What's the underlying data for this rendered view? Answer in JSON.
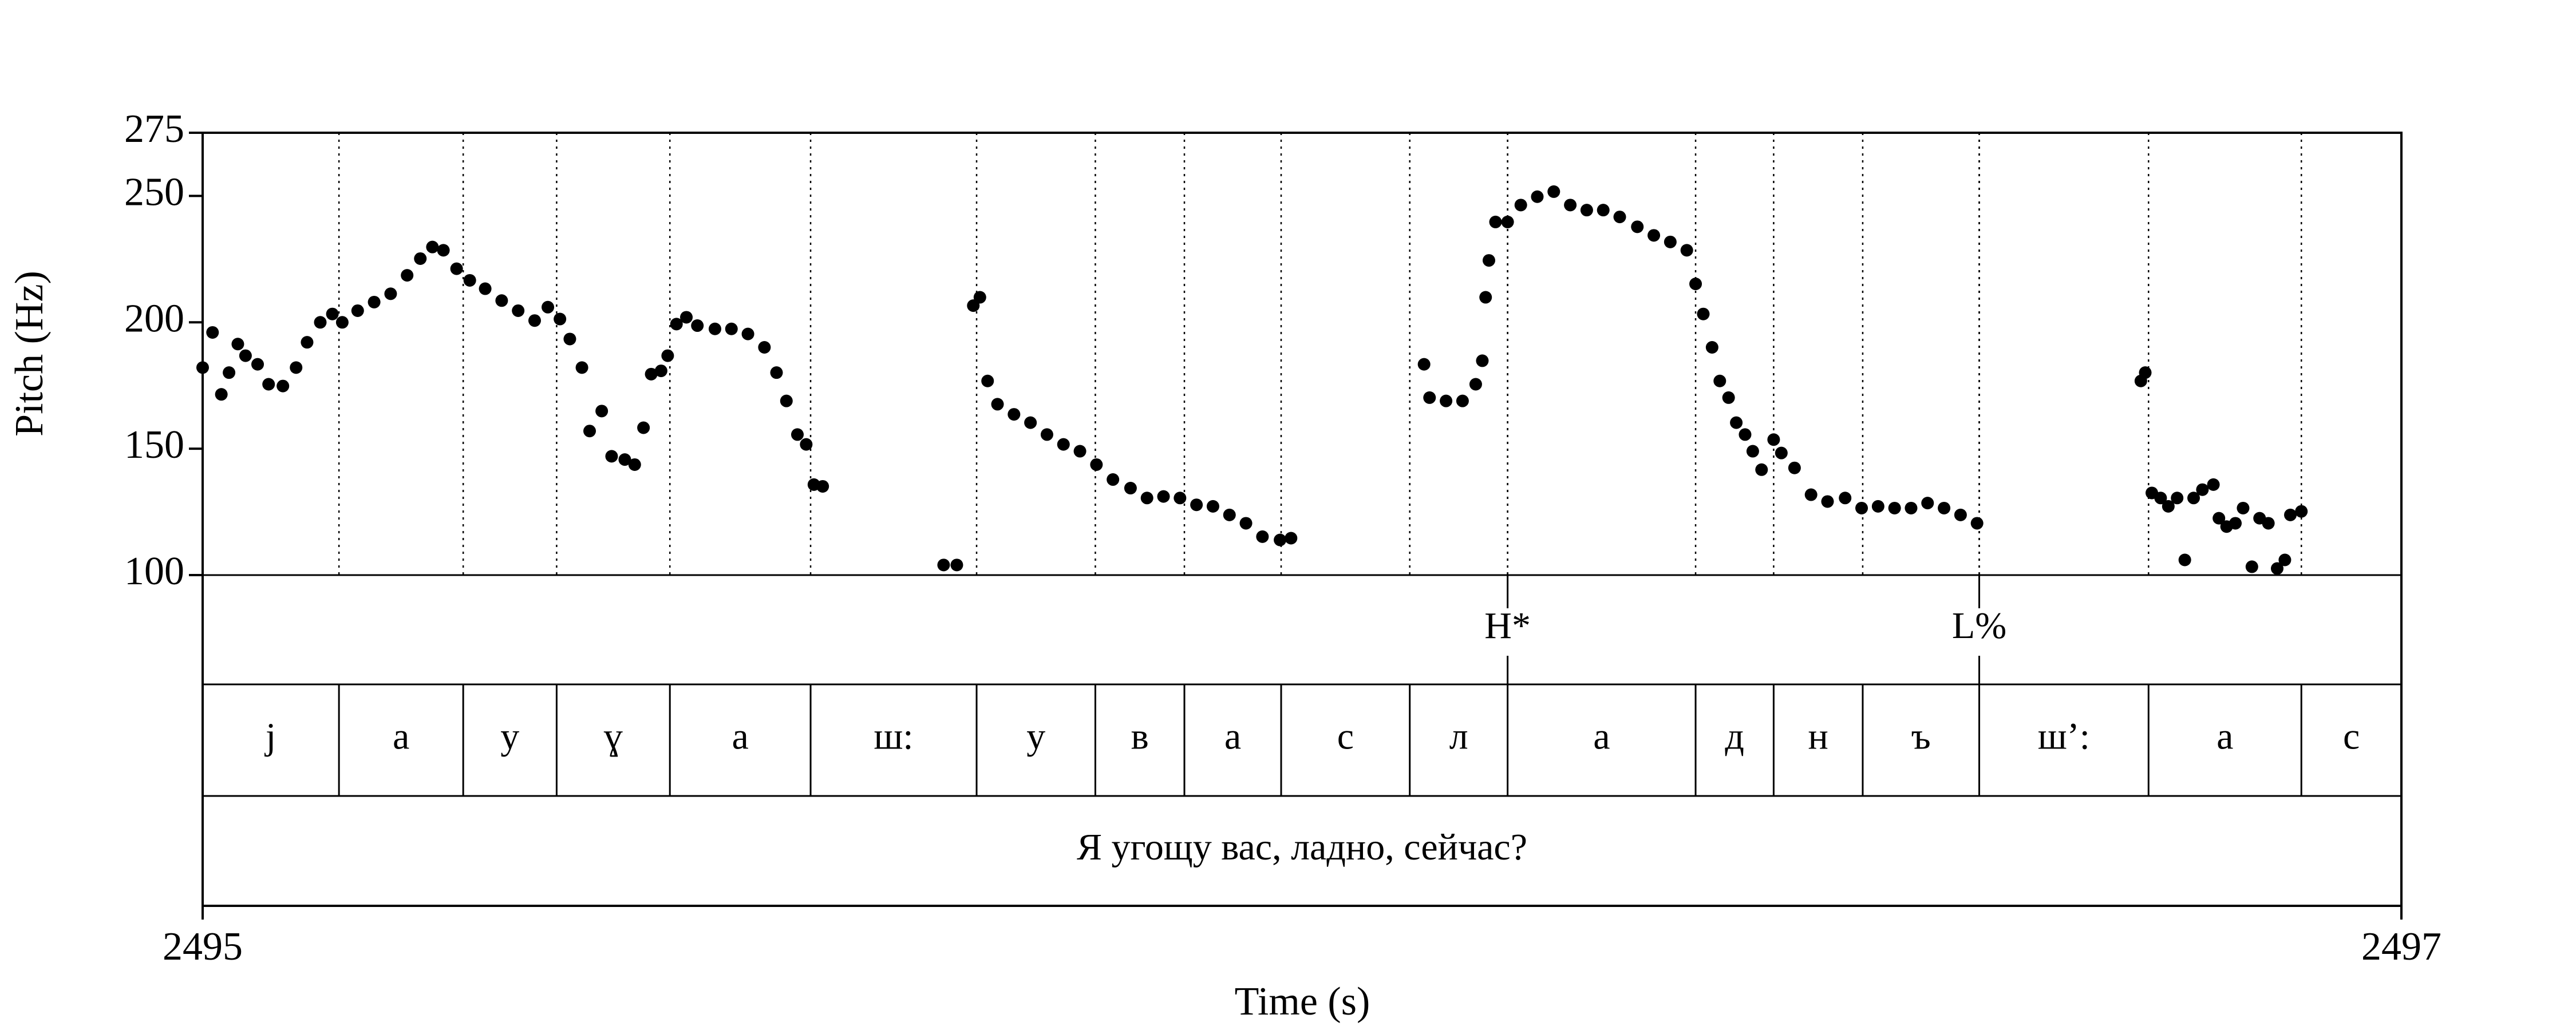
{
  "chart_data": {
    "type": "scatter",
    "xlabel": "Time (s)",
    "ylabel": "Pitch (Hz)",
    "xlim": [
      2495,
      2497
    ],
    "xticks": [
      2495,
      2497
    ],
    "ylim": [
      100,
      275
    ],
    "yticks": [
      100,
      150,
      200,
      250,
      275
    ],
    "color": "#000000",
    "x": [
      2495.0,
      2495.009,
      2495.017,
      2495.024,
      2495.032,
      2495.039,
      2495.05,
      2495.06,
      2495.073,
      2495.085,
      2495.095,
      2495.107,
      2495.118,
      2495.127,
      2495.141,
      2495.156,
      2495.171,
      2495.186,
      2495.198,
      2495.209,
      2495.219,
      2495.231,
      2495.243,
      2495.257,
      2495.272,
      2495.287,
      2495.302,
      2495.314,
      2495.325,
      2495.334,
      2495.345,
      2495.352,
      2495.363,
      2495.372,
      2495.384,
      2495.393,
      2495.401,
      2495.408,
      2495.417,
      2495.423,
      2495.431,
      2495.44,
      2495.45,
      2495.466,
      2495.481,
      2495.496,
      2495.511,
      2495.522,
      2495.531,
      2495.541,
      2495.549,
      2495.556,
      2495.564,
      2495.674,
      2495.686,
      2495.701,
      2495.707,
      2495.714,
      2495.723,
      2495.738,
      2495.753,
      2495.768,
      2495.783,
      2495.798,
      2495.813,
      2495.828,
      2495.844,
      2495.859,
      2495.874,
      2495.889,
      2495.904,
      2495.919,
      2495.934,
      2495.949,
      2495.964,
      2495.98,
      2495.99,
      2496.111,
      2496.116,
      2496.131,
      2496.146,
      2496.158,
      2496.164,
      2496.167,
      2496.17,
      2496.176,
      2496.187,
      2496.199,
      2496.214,
      2496.229,
      2496.244,
      2496.259,
      2496.274,
      2496.289,
      2496.305,
      2496.32,
      2496.335,
      2496.35,
      2496.358,
      2496.365,
      2496.373,
      2496.38,
      2496.388,
      2496.395,
      2496.403,
      2496.41,
      2496.418,
      2496.429,
      2496.436,
      2496.448,
      2496.463,
      2496.478,
      2496.494,
      2496.509,
      2496.524,
      2496.539,
      2496.554,
      2496.569,
      2496.584,
      2496.599,
      2496.614,
      2496.763,
      2496.767,
      2496.773,
      2496.781,
      2496.788,
      2496.796,
      2496.803,
      2496.811,
      2496.819,
      2496.829,
      2496.834,
      2496.841,
      2496.849,
      2496.856,
      2496.864,
      2496.871,
      2496.879,
      2496.887,
      2496.894,
      2496.899,
      2496.909
    ],
    "values": [
      182.1,
      196.0,
      171.5,
      180.1,
      191.4,
      186.8,
      183.4,
      175.5,
      174.8,
      182.1,
      192.1,
      200.0,
      203.3,
      200.0,
      204.6,
      208.0,
      211.3,
      218.6,
      225.2,
      229.8,
      228.5,
      221.2,
      216.6,
      213.3,
      208.6,
      204.6,
      200.7,
      206.0,
      201.3,
      193.4,
      182.1,
      157.0,
      164.9,
      147.0,
      145.7,
      143.7,
      158.3,
      179.5,
      180.8,
      186.8,
      199.3,
      202.0,
      198.7,
      197.4,
      197.4,
      195.4,
      190.1,
      180.1,
      168.9,
      155.6,
      151.7,
      135.8,
      135.1,
      104.0,
      104.0,
      206.6,
      209.9,
      176.8,
      167.6,
      163.6,
      160.3,
      155.6,
      151.7,
      149.0,
      143.7,
      137.8,
      134.4,
      130.5,
      131.1,
      130.5,
      127.8,
      127.2,
      123.8,
      120.5,
      115.2,
      113.9,
      114.6,
      183.4,
      170.2,
      168.9,
      168.9,
      175.5,
      184.8,
      209.9,
      224.5,
      239.7,
      239.7,
      246.4,
      249.7,
      251.7,
      246.4,
      244.4,
      244.4,
      241.7,
      237.8,
      234.4,
      231.8,
      228.5,
      215.2,
      203.3,
      190.1,
      176.8,
      170.2,
      160.3,
      155.6,
      149.0,
      141.7,
      153.6,
      148.3,
      142.4,
      131.8,
      129.1,
      130.5,
      126.5,
      127.2,
      126.5,
      126.5,
      128.5,
      126.5,
      123.8,
      120.5,
      176.8,
      180.1,
      132.5,
      130.5,
      127.2,
      130.5,
      106.0,
      130.5,
      133.8,
      135.8,
      122.5,
      119.2,
      120.5,
      126.5,
      103.3,
      122.5,
      120.5,
      102.6,
      106.0,
      123.8,
      125.2
    ],
    "tones": {
      "times": [
        2496.187,
        2496.616
      ],
      "labels": [
        "H*",
        "L%"
      ]
    },
    "phones": {
      "boundaries": [
        2495.124,
        2495.237,
        2495.322,
        2495.425,
        2495.553,
        2495.704,
        2495.812,
        2495.893,
        2495.981,
        2496.098,
        2496.187,
        2496.358,
        2496.429,
        2496.51,
        2496.616,
        2496.77,
        2496.909
      ],
      "labels": [
        "j",
        "а",
        "у",
        "ɣ",
        "а",
        "ш:",
        "у",
        "в",
        "а",
        "с",
        "л",
        "а",
        "д",
        "н",
        "ъ",
        "ш’:",
        "а",
        "с"
      ]
    },
    "words": {
      "labels": [
        "Я угощу вас, ладно, сейчас?"
      ]
    }
  }
}
